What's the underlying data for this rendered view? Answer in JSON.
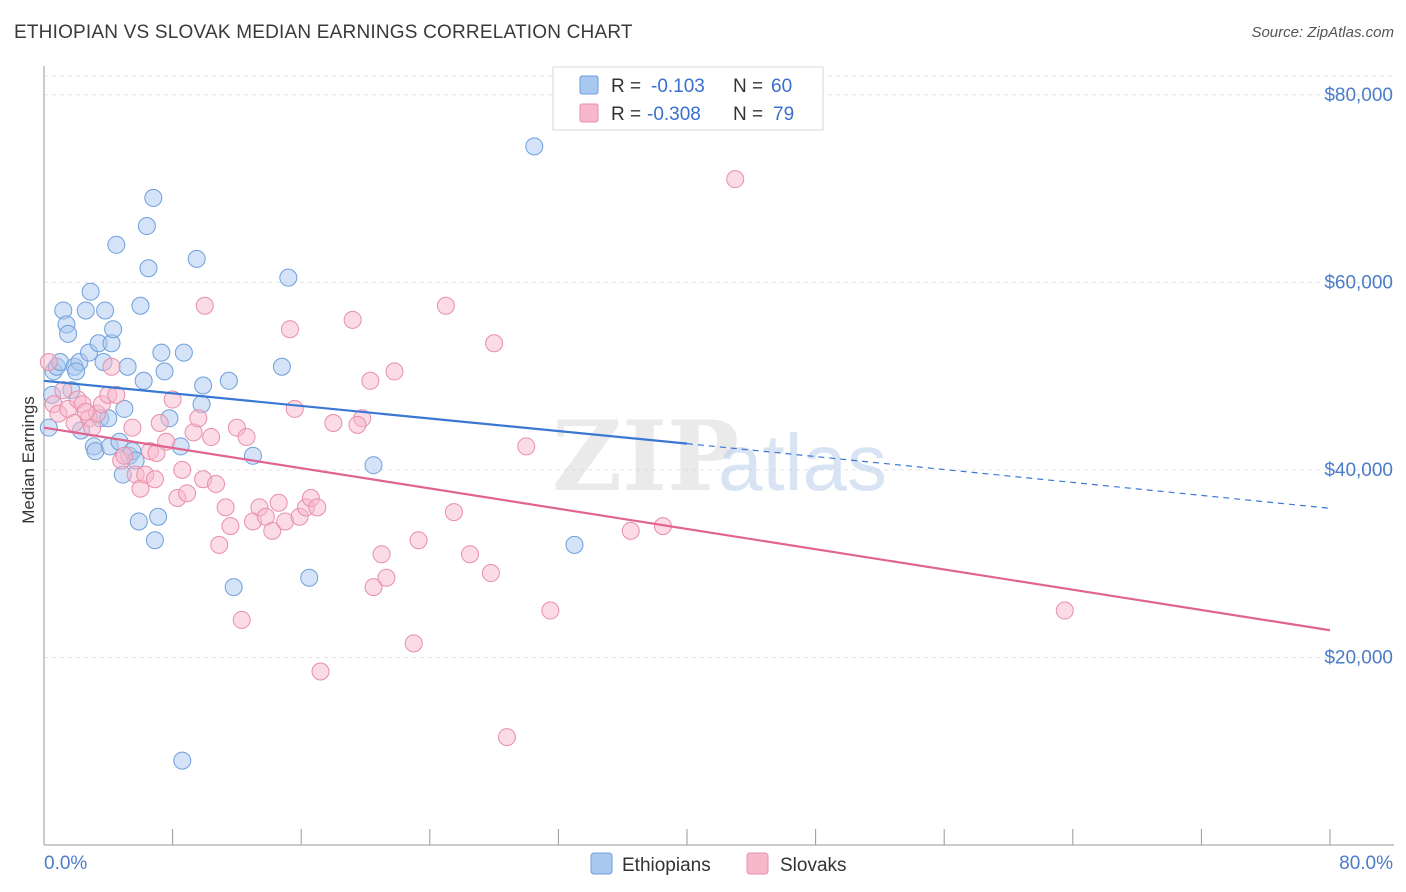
{
  "header": {
    "title": "ETHIOPIAN VS SLOVAK MEDIAN EARNINGS CORRELATION CHART",
    "source": "Source: ZipAtlas.com"
  },
  "watermark": {
    "zip": "ZIP",
    "atlas": "atlas"
  },
  "legend": {
    "rows": [
      {
        "r_label": "R =",
        "r_value": "-0.103",
        "n_label": "N =",
        "n_value": "60",
        "color": "#a9c8f0"
      },
      {
        "r_label": "R =",
        "r_value": "-0.308",
        "n_label": "N =",
        "n_value": "79",
        "color": "#f7b8cc"
      }
    ]
  },
  "bottom_legend": {
    "ethiopians": "Ethiopians",
    "slovaks": "Slovaks"
  },
  "chart_data": {
    "type": "scatter",
    "title": "ETHIOPIAN VS SLOVAK MEDIAN EARNINGS CORRELATION CHART",
    "xlabel": "",
    "ylabel": "Median Earnings",
    "xlim": [
      0,
      80
    ],
    "ylim": [
      0,
      82000
    ],
    "x_tick_labels": [
      "0.0%",
      "80.0%"
    ],
    "y_ticks": [
      20000,
      40000,
      60000,
      80000
    ],
    "y_tick_labels": [
      "$20,000",
      "$40,000",
      "$60,000",
      "$80,000"
    ],
    "grid": true,
    "series": [
      {
        "name": "Ethiopians",
        "color": "#a9c8f0",
        "stroke": "#6f9fdc",
        "line_color": "#3a78d4",
        "trend": {
          "x0": 0,
          "y0": 49500,
          "x1": 40,
          "y1": 42800,
          "dash_to_x": 80,
          "dash_to_y": 35900
        },
        "points": [
          [
            0.3,
            44500
          ],
          [
            0.5,
            48000
          ],
          [
            0.6,
            50500
          ],
          [
            0.8,
            51000
          ],
          [
            1.0,
            51500
          ],
          [
            1.2,
            57000
          ],
          [
            1.4,
            55500
          ],
          [
            1.5,
            54500
          ],
          [
            1.9,
            51000
          ],
          [
            2.2,
            51500
          ],
          [
            2.3,
            44200
          ],
          [
            2.6,
            57000
          ],
          [
            2.8,
            52500
          ],
          [
            2.9,
            59000
          ],
          [
            3.1,
            42500
          ],
          [
            3.2,
            42000
          ],
          [
            3.4,
            53500
          ],
          [
            3.5,
            45500
          ],
          [
            3.7,
            51500
          ],
          [
            3.8,
            57000
          ],
          [
            4.1,
            42500
          ],
          [
            4.2,
            53500
          ],
          [
            4.3,
            55000
          ],
          [
            4.5,
            64000
          ],
          [
            4.7,
            43000
          ],
          [
            4.9,
            39500
          ],
          [
            5.0,
            46500
          ],
          [
            5.2,
            51000
          ],
          [
            5.3,
            41500
          ],
          [
            5.5,
            42000
          ],
          [
            5.7,
            41000
          ],
          [
            5.9,
            34500
          ],
          [
            6.0,
            57500
          ],
          [
            6.2,
            49500
          ],
          [
            6.4,
            66000
          ],
          [
            6.5,
            61500
          ],
          [
            6.8,
            69000
          ],
          [
            6.9,
            32500
          ],
          [
            7.1,
            35000
          ],
          [
            7.3,
            52500
          ],
          [
            7.5,
            50500
          ],
          [
            7.8,
            45500
          ],
          [
            8.5,
            42500
          ],
          [
            8.6,
            9000
          ],
          [
            8.7,
            52500
          ],
          [
            9.5,
            62500
          ],
          [
            9.9,
            49000
          ],
          [
            9.8,
            47000
          ],
          [
            11.5,
            49500
          ],
          [
            11.8,
            27500
          ],
          [
            13.0,
            41500
          ],
          [
            14.8,
            51000
          ],
          [
            15.2,
            60500
          ],
          [
            16.5,
            28500
          ],
          [
            20.5,
            40500
          ],
          [
            30.5,
            74500
          ],
          [
            33.0,
            32000
          ],
          [
            1.7,
            48500
          ],
          [
            4.0,
            45500
          ],
          [
            2.0,
            50500
          ]
        ]
      },
      {
        "name": "Slovaks",
        "color": "#f7b8cc",
        "stroke": "#e88fab",
        "line_color": "#e0648f",
        "trend": {
          "x0": 0,
          "y0": 44500,
          "x1": 80,
          "y1": 22900
        },
        "points": [
          [
            0.3,
            51500
          ],
          [
            0.6,
            47000
          ],
          [
            0.9,
            46000
          ],
          [
            1.2,
            48500
          ],
          [
            1.5,
            46500
          ],
          [
            1.9,
            45000
          ],
          [
            2.1,
            47500
          ],
          [
            2.4,
            47000
          ],
          [
            2.8,
            45500
          ],
          [
            3.0,
            44500
          ],
          [
            3.3,
            46000
          ],
          [
            3.6,
            47000
          ],
          [
            4.0,
            48000
          ],
          [
            4.2,
            51000
          ],
          [
            4.5,
            48000
          ],
          [
            4.8,
            41000
          ],
          [
            5.0,
            41500
          ],
          [
            5.5,
            44500
          ],
          [
            5.7,
            39500
          ],
          [
            6.0,
            38000
          ],
          [
            6.3,
            39500
          ],
          [
            6.6,
            42000
          ],
          [
            6.9,
            39000
          ],
          [
            7.2,
            45000
          ],
          [
            7.6,
            43000
          ],
          [
            8.0,
            47500
          ],
          [
            8.3,
            37000
          ],
          [
            8.6,
            40000
          ],
          [
            8.9,
            37500
          ],
          [
            9.3,
            44000
          ],
          [
            9.6,
            45500
          ],
          [
            9.9,
            39000
          ],
          [
            10.0,
            57500
          ],
          [
            10.4,
            43500
          ],
          [
            10.7,
            38500
          ],
          [
            10.9,
            32000
          ],
          [
            11.3,
            36000
          ],
          [
            11.6,
            34000
          ],
          [
            12.0,
            44500
          ],
          [
            12.3,
            24000
          ],
          [
            12.6,
            43500
          ],
          [
            13.0,
            34500
          ],
          [
            13.4,
            36000
          ],
          [
            13.8,
            35000
          ],
          [
            14.2,
            33500
          ],
          [
            14.6,
            36500
          ],
          [
            15.0,
            34500
          ],
          [
            15.3,
            55000
          ],
          [
            15.6,
            46500
          ],
          [
            15.9,
            35000
          ],
          [
            16.3,
            36000
          ],
          [
            16.6,
            37000
          ],
          [
            17.0,
            36000
          ],
          [
            17.2,
            18500
          ],
          [
            18.0,
            45000
          ],
          [
            19.2,
            56000
          ],
          [
            19.8,
            45500
          ],
          [
            20.3,
            49500
          ],
          [
            20.5,
            27500
          ],
          [
            21.0,
            31000
          ],
          [
            21.3,
            28500
          ],
          [
            21.8,
            50500
          ],
          [
            23.0,
            21500
          ],
          [
            23.3,
            32500
          ],
          [
            25.0,
            57500
          ],
          [
            25.5,
            35500
          ],
          [
            26.5,
            31000
          ],
          [
            27.8,
            29000
          ],
          [
            28.0,
            53500
          ],
          [
            28.8,
            11500
          ],
          [
            30.0,
            42500
          ],
          [
            31.5,
            25000
          ],
          [
            36.5,
            33500
          ],
          [
            38.5,
            34000
          ],
          [
            43.0,
            71000
          ],
          [
            63.5,
            25000
          ],
          [
            19.5,
            44800
          ],
          [
            7.0,
            41800
          ],
          [
            2.6,
            46200
          ]
        ]
      }
    ]
  }
}
